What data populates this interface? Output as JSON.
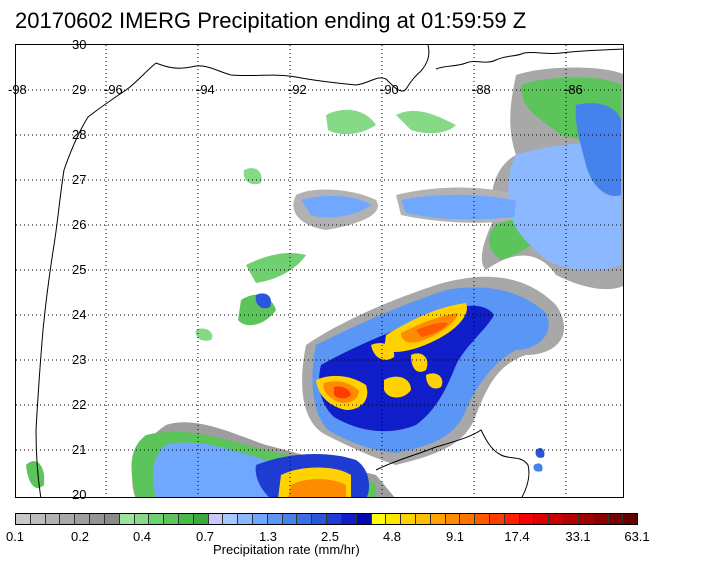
{
  "title": "20170602 IMERG Precipitation ending at 01:59:59 Z",
  "map": {
    "lon_labels": [
      "-98",
      "-96",
      "-94",
      "-92",
      "-90",
      "-88",
      "-86"
    ],
    "lat_labels": [
      "30",
      "29",
      "28",
      "27",
      "26",
      "25",
      "24",
      "23",
      "22",
      "21",
      "20"
    ],
    "grid_style": "dotted",
    "coastline_color": "#000000"
  },
  "colorbar": {
    "title": "Precipitation rate (mm/hr)",
    "tick_labels": [
      "0.1",
      "0.2",
      "0.4",
      "0.7",
      "1.3",
      "2.5",
      "4.8",
      "9.1",
      "17.4",
      "33.1",
      "63.1"
    ],
    "colors": [
      "#c8c8c8",
      "#bdbdbd",
      "#b2b2b2",
      "#a8a8a8",
      "#9e9e9e",
      "#949494",
      "#8a8a8a",
      "#9be39b",
      "#86d986",
      "#70cf70",
      "#5bc45b",
      "#46ba46",
      "#3aa83a",
      "#c8c8ff",
      "#a8c8ff",
      "#8cb8ff",
      "#70a8ff",
      "#5a96f5",
      "#4682eb",
      "#3a6ee6",
      "#2a56dc",
      "#1e3cd2",
      "#0f1ec8",
      "#000ab4",
      "#ffff00",
      "#ffe600",
      "#ffd200",
      "#ffbe00",
      "#ffa500",
      "#ff8c00",
      "#ff7300",
      "#ff5a00",
      "#ff3c00",
      "#ff1e00",
      "#f50000",
      "#dc0000",
      "#c80000",
      "#b40000",
      "#a00000",
      "#8c0000",
      "#780000",
      "#640000"
    ]
  }
}
